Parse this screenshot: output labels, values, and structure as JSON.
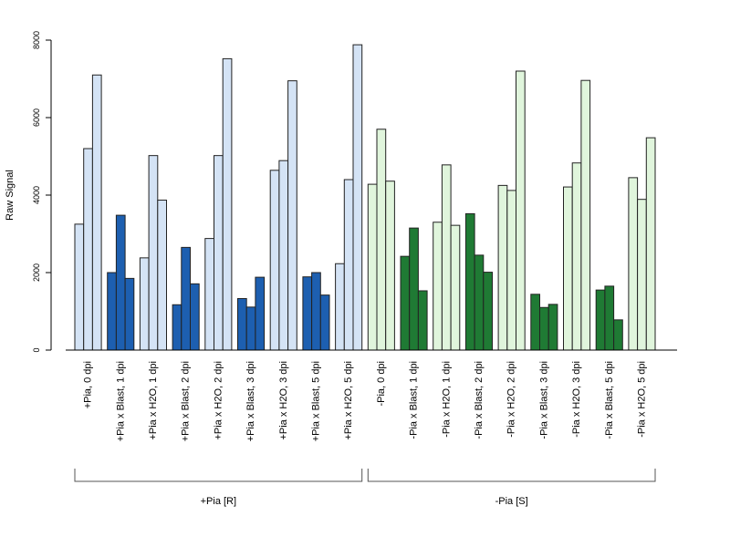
{
  "chart_data": {
    "type": "bar",
    "subtype": "grouped",
    "title": "",
    "xlabel": "",
    "ylabel": "Raw Signal",
    "ylim": [
      0,
      8000
    ],
    "yticks": [
      "0",
      "2000",
      "4000",
      "6000",
      "8000"
    ],
    "grid": false,
    "legend": "none",
    "categories": [
      "+Pia, 0 dpi",
      "+Pia x Blast, 1 dpi",
      "+Pia x H2O, 1 dpi",
      "+Pia x Blast, 2 dpi",
      "+Pia x H2O, 2 dpi",
      "+Pia x Blast, 3 dpi",
      "+Pia x H2O, 3 dpi",
      "+Pia x Blast, 5 dpi",
      "+Pia x H2O, 5 dpi",
      "-Pia, 0 dpi",
      "-Pia x Blast, 1 dpi",
      "-Pia x H2O, 1 dpi",
      "-Pia x Blast, 2 dpi",
      "-Pia x H2O, 2 dpi",
      "-Pia x Blast, 3 dpi",
      "-Pia x H2O, 3 dpi",
      "-Pia x Blast, 5 dpi",
      "-Pia x H2O, 5 dpi"
    ],
    "values": [
      [
        3250,
        5200,
        7100
      ],
      [
        2000,
        3480,
        1850
      ],
      [
        2380,
        5020,
        3870
      ],
      [
        1170,
        2650,
        1710
      ],
      [
        2880,
        5020,
        7520
      ],
      [
        1330,
        1110,
        1880
      ],
      [
        4640,
        4890,
        6950
      ],
      [
        1890,
        2000,
        1420
      ],
      [
        2230,
        4400,
        7880
      ],
      [
        4280,
        5700,
        4360
      ],
      [
        2420,
        3150,
        1530
      ],
      [
        3300,
        4780,
        3220
      ],
      [
        3520,
        2450,
        2010
      ],
      [
        4250,
        4120,
        7200
      ],
      [
        1440,
        1100,
        1180
      ],
      [
        4210,
        4830,
        6960
      ],
      [
        1550,
        1650,
        780
      ],
      [
        4450,
        3890,
        5480
      ]
    ],
    "bar_colors": [
      "#d4e3f5",
      "#1d5fb0",
      "#d4e3f5",
      "#1d5fb0",
      "#d4e3f5",
      "#1d5fb0",
      "#d4e3f5",
      "#1d5fb0",
      "#d4e3f5",
      "#e0f5dc",
      "#1f7a34",
      "#e0f5dc",
      "#1f7a34",
      "#e0f5dc",
      "#1f7a34",
      "#e0f5dc",
      "#1f7a34",
      "#e0f5dc"
    ],
    "groups": [
      {
        "label": "+Pia [R]",
        "from": 0,
        "to": 8
      },
      {
        "label": "-Pia [S]",
        "from": 9,
        "to": 17
      }
    ]
  }
}
